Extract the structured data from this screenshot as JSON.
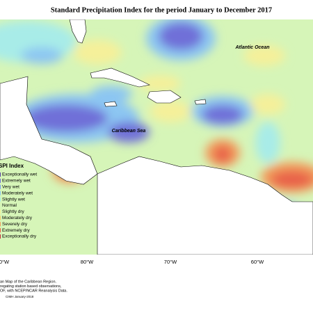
{
  "title": "Standard Precipitation Index for the period January to December 2017",
  "places": [
    "Atlantic Ocean",
    "Caribbean Sea"
  ],
  "legend": {
    "title": "SPI Index",
    "items": [
      {
        "label": "Exceptionally wet",
        "color": "#5a3fa8"
      },
      {
        "label": "Extremely wet",
        "color": "#6f6fd8"
      },
      {
        "label": "Very wet",
        "color": "#7a9cf0"
      },
      {
        "label": "Moderately wet",
        "color": "#8cc6f2"
      },
      {
        "label": "Slightly wet",
        "color": "#a8ece8"
      },
      {
        "label": "Normal",
        "color": "#d6f5b8"
      },
      {
        "label": "Slightly dry",
        "color": "#f5f09a"
      },
      {
        "label": "Moderately dry",
        "color": "#f6c86a"
      },
      {
        "label": "Severely dry",
        "color": "#f29a5a"
      },
      {
        "label": "Extremely dry",
        "color": "#e8604a"
      },
      {
        "label": "Exceptionally dry",
        "color": "#c8303a"
      }
    ]
  },
  "longitudes": [
    "0°W",
    "80°W",
    "70°W",
    "60°W"
  ],
  "footer": [
    "an Map of the Caribbean Region.",
    "regating station based observations,",
    "OF, with NCEP/NCAR Reanalysis Data.",
    "CIMH January-2018"
  ]
}
